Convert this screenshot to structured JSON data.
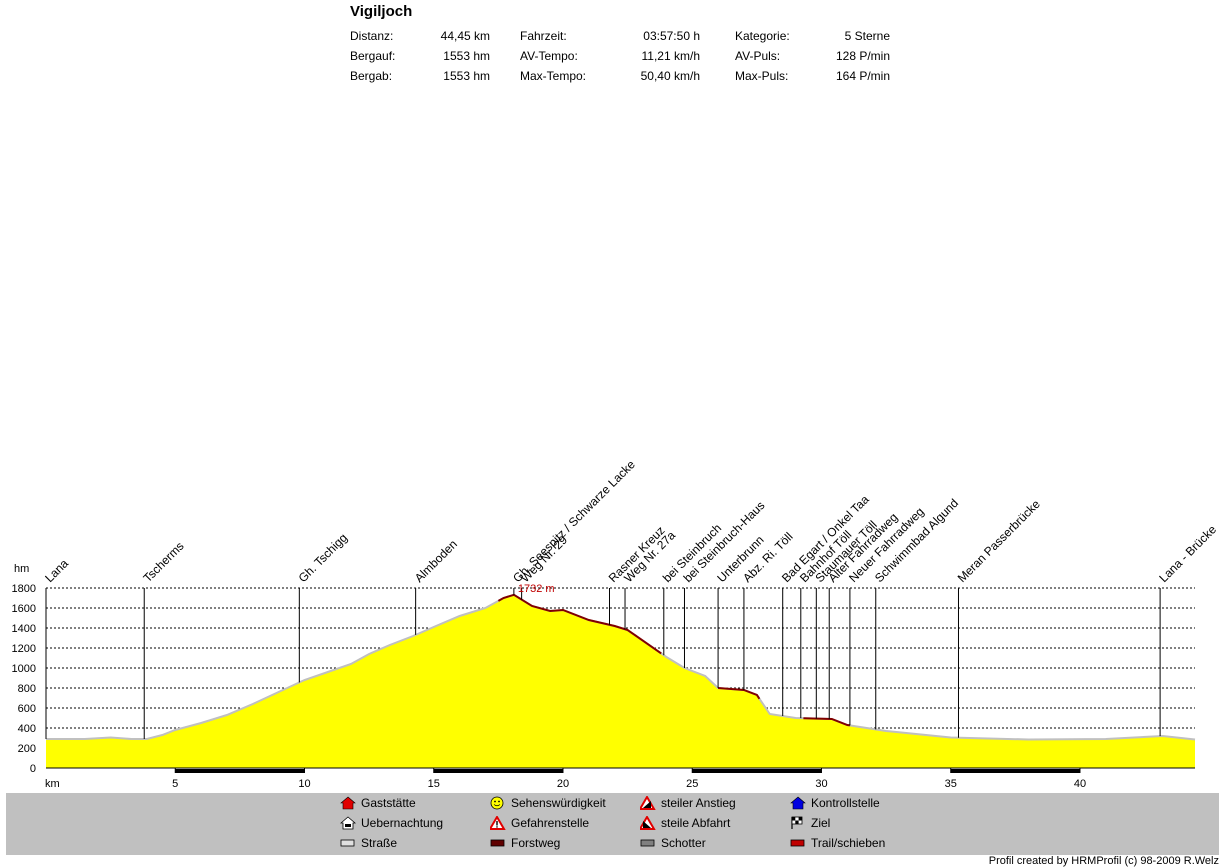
{
  "title": "Vigiljoch",
  "stats": [
    {
      "label": "Distanz:",
      "value": "44,45 km"
    },
    {
      "label": "Bergauf:",
      "value": "1553 hm"
    },
    {
      "label": "Bergab:",
      "value": "1553 hm"
    },
    {
      "label": "Fahrzeit:",
      "value": "03:57:50 h"
    },
    {
      "label": "AV-Tempo:",
      "value": "11,21 km/h"
    },
    {
      "label": "Max-Tempo:",
      "value": "50,40 km/h"
    },
    {
      "label": "Kategorie:",
      "value": "5 Sterne"
    },
    {
      "label": "AV-Puls:",
      "value": "128 P/min"
    },
    {
      "label": "Max-Puls:",
      "value": "164 P/min"
    }
  ],
  "chart_data": {
    "type": "area",
    "xlabel": "km",
    "ylabel": "hm",
    "xlim": [
      0,
      44.45
    ],
    "ylim": [
      0,
      1800
    ],
    "x_ticks": [
      "5",
      "10",
      "15",
      "20",
      "25",
      "30",
      "35",
      "40"
    ],
    "y_ticks": [
      "0",
      "200",
      "400",
      "600",
      "800",
      "1000",
      "1200",
      "1400",
      "1600",
      "1800"
    ],
    "grid": true,
    "max_label": "1732 m",
    "profile": [
      [
        0,
        290
      ],
      [
        1.5,
        290
      ],
      [
        2.5,
        305
      ],
      [
        3.3,
        290
      ],
      [
        3.9,
        290
      ],
      [
        4.5,
        330
      ],
      [
        5.0,
        380
      ],
      [
        6.0,
        450
      ],
      [
        7.0,
        530
      ],
      [
        8.0,
        640
      ],
      [
        9.0,
        760
      ],
      [
        10.0,
        880
      ],
      [
        10.9,
        960
      ],
      [
        11.8,
        1040
      ],
      [
        12.5,
        1140
      ],
      [
        13.3,
        1230
      ],
      [
        14.2,
        1320
      ],
      [
        15.0,
        1410
      ],
      [
        16.0,
        1520
      ],
      [
        17.0,
        1600
      ],
      [
        17.7,
        1700
      ],
      [
        18.1,
        1732
      ],
      [
        18.8,
        1620
      ],
      [
        19.5,
        1570
      ],
      [
        20.0,
        1580
      ],
      [
        21.0,
        1480
      ],
      [
        22.0,
        1420
      ],
      [
        22.5,
        1380
      ],
      [
        24.0,
        1110
      ],
      [
        24.7,
        1000
      ],
      [
        25.5,
        920
      ],
      [
        26.0,
        800
      ],
      [
        27.0,
        780
      ],
      [
        27.5,
        730
      ],
      [
        28.0,
        540
      ],
      [
        29.0,
        500
      ],
      [
        30.4,
        490
      ],
      [
        31.0,
        430
      ],
      [
        32.5,
        370
      ],
      [
        35.0,
        305
      ],
      [
        38.0,
        285
      ],
      [
        41.0,
        290
      ],
      [
        43.2,
        320
      ],
      [
        44.45,
        285
      ]
    ],
    "trail_segments": [
      [
        17.5,
        23.8
      ],
      [
        26.0,
        27.6
      ],
      [
        29.3,
        31.1
      ]
    ],
    "surface_bar": [
      [
        5.0,
        10.0
      ],
      [
        15.0,
        20.0
      ],
      [
        25.0,
        30.0
      ],
      [
        35.0,
        40.0
      ]
    ],
    "waypoints": [
      {
        "name": "Lana",
        "km": 0.0
      },
      {
        "name": "Tscherms",
        "km": 3.8
      },
      {
        "name": "Gh. Tschigg",
        "km": 9.8
      },
      {
        "name": "Almboden",
        "km": 14.3
      },
      {
        "name": "Gh. Seespitz / Schwarze Lacke",
        "km": 18.1
      },
      {
        "name": "Weg Nr. 29",
        "km": 18.4
      },
      {
        "name": "Rasner Kreuz",
        "km": 21.8
      },
      {
        "name": "Weg Nr. 27a",
        "km": 22.4
      },
      {
        "name": "bei Steinbruch",
        "km": 23.9
      },
      {
        "name": "bei Steinbruch-Haus",
        "km": 24.7
      },
      {
        "name": "Unterbrunn",
        "km": 26.0
      },
      {
        "name": "Abz. Ri. Töll",
        "km": 27.0
      },
      {
        "name": "Bad Egart / Onkel Taa",
        "km": 28.5
      },
      {
        "name": "Bahnhof Töll",
        "km": 29.2
      },
      {
        "name": "Staumauer Töll",
        "km": 29.8
      },
      {
        "name": "Alter Fahrradweg",
        "km": 30.3
      },
      {
        "name": "Neuer Fahrradweg",
        "km": 31.1
      },
      {
        "name": "Schwimmbad Algund",
        "km": 32.1
      },
      {
        "name": "Meran Passerbrücke",
        "km": 35.3
      },
      {
        "name": "Lana - Brücke",
        "km": 43.1
      }
    ]
  },
  "legend": [
    {
      "label": "Gaststätte",
      "icon": "house-red"
    },
    {
      "label": "Uebernachtung",
      "icon": "bed-icon"
    },
    {
      "label": "Straße",
      "icon": "road-swatch",
      "color": "#e0e0e0"
    },
    {
      "label": "Sehenswürdigkeit",
      "icon": "smiley-icon"
    },
    {
      "label": "Gefahrenstelle",
      "icon": "warning-icon"
    },
    {
      "label": "Forstweg",
      "icon": "forest-swatch",
      "color": "#600000"
    },
    {
      "label": "steiler Anstieg",
      "icon": "climb-icon"
    },
    {
      "label": "steile Abfahrt",
      "icon": "descent-icon"
    },
    {
      "label": "Schotter",
      "icon": "gravel-swatch",
      "color": "#808080"
    },
    {
      "label": "Kontrollstelle",
      "icon": "house-blue"
    },
    {
      "label": "Ziel",
      "icon": "flag-icon"
    },
    {
      "label": "Trail/schieben",
      "icon": "trail-swatch",
      "color": "#c00000"
    }
  ],
  "credit": "Profil created by HRMProfil (c) 98-2009 R.Welz",
  "colors": {
    "fill": "#ffff00",
    "road_line": "#c0c0c0",
    "trail_line": "#800000",
    "max_label": "#c00000"
  }
}
